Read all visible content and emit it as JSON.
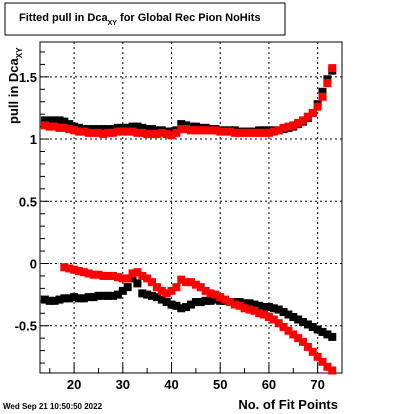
{
  "chart_data": {
    "type": "scatter",
    "title": "Fitted pull in Dca",
    "title_subscript": "XY",
    "title_suffix": " for Global Rec Pion NoHits",
    "xlabel": "No. of Fit Points",
    "ylabel": "pull in Dca",
    "ylabel_subscript": "XY",
    "xlim": [
      13,
      75
    ],
    "ylim": [
      -0.88,
      1.78
    ],
    "grid": true,
    "legend": "none",
    "x_ticks": [
      20,
      30,
      40,
      50,
      60,
      70
    ],
    "x_tick_labels": [
      "20",
      "30",
      "40",
      "50",
      "60",
      "70"
    ],
    "y_ticks": [
      -0.5,
      0,
      0.5,
      1,
      1.5
    ],
    "y_tick_labels": [
      "-0.5",
      "0",
      "0.5",
      "1",
      "1.5"
    ],
    "series": [
      {
        "color": "#000000",
        "x": [
          14,
          15,
          16,
          17,
          18,
          19,
          20,
          21,
          22,
          23,
          24,
          25,
          26,
          27,
          28,
          29,
          30,
          31,
          32,
          33,
          34,
          35,
          36,
          37,
          38,
          39,
          40,
          41,
          42,
          43,
          44,
          45,
          46,
          47,
          48,
          49,
          50,
          51,
          52,
          53,
          54,
          55,
          56,
          57,
          58,
          59,
          60,
          61,
          62,
          63,
          64,
          65,
          66,
          67,
          68,
          69,
          70,
          71,
          72,
          73
        ],
        "y": [
          1.15,
          1.15,
          1.15,
          1.15,
          1.14,
          1.12,
          1.1,
          1.09,
          1.08,
          1.08,
          1.08,
          1.08,
          1.08,
          1.08,
          1.08,
          1.09,
          1.09,
          1.09,
          1.1,
          1.1,
          1.09,
          1.08,
          1.08,
          1.07,
          1.07,
          1.06,
          1.06,
          1.07,
          1.12,
          1.11,
          1.1,
          1.1,
          1.09,
          1.09,
          1.08,
          1.08,
          1.07,
          1.07,
          1.07,
          1.07,
          1.06,
          1.06,
          1.06,
          1.06,
          1.07,
          1.07,
          1.07,
          1.07,
          1.07,
          1.08,
          1.09,
          1.1,
          1.12,
          1.14,
          1.17,
          1.21,
          1.28,
          1.38,
          1.48,
          1.55
        ]
      },
      {
        "color": "#000000",
        "x": [
          14,
          15,
          16,
          17,
          18,
          19,
          20,
          21,
          22,
          23,
          24,
          25,
          26,
          27,
          28,
          29,
          30,
          31,
          32,
          33,
          34,
          35,
          36,
          37,
          38,
          39,
          40,
          41,
          42,
          43,
          44,
          45,
          46,
          47,
          48,
          49,
          50,
          51,
          52,
          53,
          54,
          55,
          56,
          57,
          58,
          59,
          60,
          61,
          62,
          63,
          64,
          65,
          66,
          67,
          68,
          69,
          70,
          71,
          72,
          73
        ],
        "y": [
          -0.29,
          -0.3,
          -0.3,
          -0.29,
          -0.28,
          -0.28,
          -0.27,
          -0.28,
          -0.28,
          -0.27,
          -0.27,
          -0.26,
          -0.26,
          -0.26,
          -0.26,
          -0.25,
          -0.22,
          -0.19,
          -0.12,
          -0.16,
          -0.24,
          -0.25,
          -0.26,
          -0.27,
          -0.29,
          -0.31,
          -0.33,
          -0.34,
          -0.36,
          -0.35,
          -0.33,
          -0.31,
          -0.31,
          -0.3,
          -0.3,
          -0.29,
          -0.3,
          -0.3,
          -0.31,
          -0.31,
          -0.31,
          -0.32,
          -0.32,
          -0.33,
          -0.34,
          -0.35,
          -0.35,
          -0.36,
          -0.37,
          -0.39,
          -0.41,
          -0.43,
          -0.45,
          -0.47,
          -0.49,
          -0.51,
          -0.53,
          -0.55,
          -0.57,
          -0.59
        ]
      },
      {
        "color": "#ff0000",
        "x": [
          14,
          15,
          16,
          17,
          18,
          19,
          20,
          21,
          22,
          23,
          24,
          25,
          26,
          27,
          28,
          29,
          30,
          31,
          32,
          33,
          34,
          35,
          36,
          37,
          38,
          39,
          40,
          41,
          42,
          43,
          44,
          45,
          46,
          47,
          48,
          49,
          50,
          51,
          52,
          53,
          54,
          55,
          56,
          57,
          58,
          59,
          60,
          61,
          62,
          63,
          64,
          65,
          66,
          67,
          68,
          69,
          70,
          71,
          72,
          73
        ],
        "y": [
          1.11,
          1.1,
          1.1,
          1.09,
          1.09,
          1.08,
          1.07,
          1.06,
          1.06,
          1.05,
          1.05,
          1.05,
          1.04,
          1.05,
          1.05,
          1.06,
          1.06,
          1.06,
          1.06,
          1.05,
          1.05,
          1.04,
          1.04,
          1.04,
          1.05,
          1.04,
          1.03,
          1.05,
          1.08,
          1.08,
          1.07,
          1.07,
          1.07,
          1.07,
          1.07,
          1.07,
          1.06,
          1.06,
          1.06,
          1.05,
          1.05,
          1.05,
          1.05,
          1.05,
          1.05,
          1.05,
          1.05,
          1.06,
          1.07,
          1.09,
          1.1,
          1.11,
          1.13,
          1.15,
          1.18,
          1.21,
          1.26,
          1.34,
          1.45,
          1.57
        ]
      },
      {
        "color": "#ff0000",
        "x": [
          18,
          19,
          20,
          21,
          22,
          23,
          24,
          25,
          26,
          27,
          28,
          29,
          30,
          31,
          32,
          33,
          34,
          35,
          36,
          37,
          38,
          39,
          40,
          41,
          42,
          43,
          44,
          45,
          46,
          47,
          48,
          49,
          50,
          51,
          52,
          53,
          54,
          55,
          56,
          57,
          58,
          59,
          60,
          61,
          62,
          63,
          64,
          65,
          66,
          67,
          68,
          69,
          70,
          71,
          72,
          73
        ],
        "y": [
          -0.03,
          -0.04,
          -0.05,
          -0.06,
          -0.07,
          -0.08,
          -0.09,
          -0.09,
          -0.1,
          -0.1,
          -0.1,
          -0.11,
          -0.12,
          -0.12,
          -0.08,
          -0.07,
          -0.1,
          -0.12,
          -0.15,
          -0.19,
          -0.22,
          -0.24,
          -0.22,
          -0.19,
          -0.13,
          -0.15,
          -0.15,
          -0.17,
          -0.19,
          -0.22,
          -0.24,
          -0.25,
          -0.27,
          -0.29,
          -0.31,
          -0.33,
          -0.34,
          -0.36,
          -0.37,
          -0.38,
          -0.4,
          -0.41,
          -0.43,
          -0.45,
          -0.48,
          -0.51,
          -0.54,
          -0.57,
          -0.6,
          -0.63,
          -0.67,
          -0.71,
          -0.75,
          -0.79,
          -0.83,
          -0.86
        ]
      }
    ]
  },
  "footer": {
    "timestamp": "Wed Sep 21 10:50:50 2022"
  }
}
